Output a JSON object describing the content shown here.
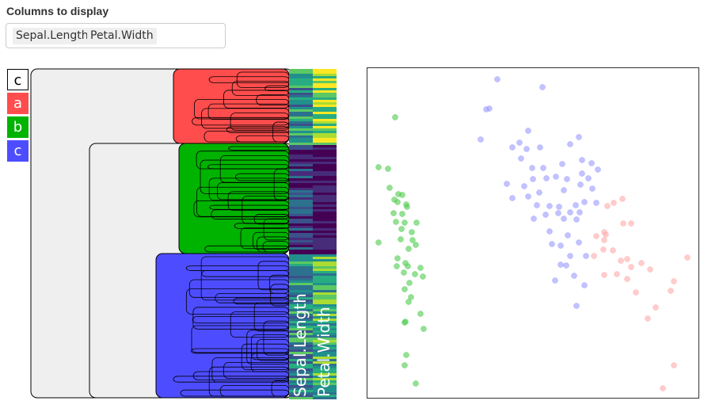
{
  "columns_label": "Columns to display",
  "selected_columns": [
    "Sepal.Length",
    "Petal.Width"
  ],
  "legend": {
    "header": "c",
    "clusters": [
      {
        "label": "a",
        "color": "#ff4d4d"
      },
      {
        "label": "b",
        "color": "#00b300"
      },
      {
        "label": "c",
        "color": "#4d4dff"
      }
    ]
  },
  "heatmap": {
    "column_labels": [
      "Sepal.Length",
      "Petal.Width"
    ],
    "dendrogram_color": "#efefef"
  },
  "chart_data": {
    "type": "scatter",
    "series": [
      {
        "color": "#4dcc4d",
        "points": [
          [
            499,
            148
          ],
          [
            478,
            211
          ],
          [
            490,
            213
          ],
          [
            492,
            237
          ],
          [
            503,
            245
          ],
          [
            498,
            252
          ],
          [
            502,
            255
          ],
          [
            508,
            246
          ],
          [
            513,
            258
          ],
          [
            514,
            261
          ],
          [
            508,
            270
          ],
          [
            497,
            269
          ],
          [
            500,
            280
          ],
          [
            511,
            281
          ],
          [
            526,
            281
          ],
          [
            507,
            289
          ],
          [
            520,
            293
          ],
          [
            478,
            306
          ],
          [
            506,
            302
          ],
          [
            521,
            303
          ],
          [
            516,
            314
          ],
          [
            525,
            309
          ],
          [
            502,
            326
          ],
          [
            512,
            332
          ],
          [
            501,
            336
          ],
          [
            515,
            336
          ],
          [
            531,
            338
          ],
          [
            510,
            344
          ],
          [
            524,
            346
          ],
          [
            534,
            349
          ],
          [
            517,
            357
          ],
          [
            511,
            365
          ],
          [
            519,
            375
          ],
          [
            516,
            381
          ],
          [
            531,
            396
          ],
          [
            512,
            406
          ],
          [
            511,
            407
          ],
          [
            535,
            415
          ],
          [
            513,
            448
          ],
          [
            511,
            461
          ],
          [
            525,
            484
          ]
        ]
      },
      {
        "color": "#9999ff",
        "points": [
          [
            628,
            100
          ],
          [
            685,
            110
          ],
          [
            614,
            138
          ],
          [
            618,
            137
          ],
          [
            667,
            165
          ],
          [
            607,
            176
          ],
          [
            647,
            186
          ],
          [
            656,
            180
          ],
          [
            665,
            188
          ],
          [
            682,
            186
          ],
          [
            731,
            173
          ],
          [
            720,
            182
          ],
          [
            658,
            200
          ],
          [
            672,
            212
          ],
          [
            686,
            212
          ],
          [
            710,
            207
          ],
          [
            735,
            202
          ],
          [
            747,
            206
          ],
          [
            755,
            214
          ],
          [
            673,
            226
          ],
          [
            690,
            225
          ],
          [
            702,
            223
          ],
          [
            716,
            226
          ],
          [
            735,
            219
          ],
          [
            743,
            225
          ],
          [
            640,
            232
          ],
          [
            662,
            235
          ],
          [
            681,
            243
          ],
          [
            712,
            240
          ],
          [
            733,
            233
          ],
          [
            748,
            238
          ],
          [
            647,
            250
          ],
          [
            667,
            248
          ],
          [
            678,
            259
          ],
          [
            694,
            260
          ],
          [
            706,
            261
          ],
          [
            727,
            259
          ],
          [
            738,
            255
          ],
          [
            753,
            256
          ],
          [
            705,
            269
          ],
          [
            720,
            268
          ],
          [
            732,
            268
          ],
          [
            674,
            276
          ],
          [
            689,
            271
          ],
          [
            712,
            276
          ],
          [
            728,
            277
          ],
          [
            694,
            292
          ],
          [
            717,
            297
          ],
          [
            697,
            308
          ],
          [
            708,
            310
          ],
          [
            731,
            306
          ],
          [
            740,
            323
          ],
          [
            720,
            323
          ],
          [
            708,
            334
          ],
          [
            715,
            335
          ],
          [
            701,
            354
          ],
          [
            725,
            348
          ],
          [
            738,
            360
          ],
          [
            728,
            386
          ]
        ]
      },
      {
        "color": "#ffaaaa",
        "points": [
          [
            786,
            251
          ],
          [
            775,
            256
          ],
          [
            767,
            260
          ],
          [
            787,
            282
          ],
          [
            797,
            282
          ],
          [
            763,
            293
          ],
          [
            765,
            296
          ],
          [
            763,
            303
          ],
          [
            753,
            298
          ],
          [
            774,
            316
          ],
          [
            762,
            315
          ],
          [
            750,
            323
          ],
          [
            792,
            327
          ],
          [
            784,
            329
          ],
          [
            797,
            337
          ],
          [
            810,
            332
          ],
          [
            779,
            346
          ],
          [
            763,
            347
          ],
          [
            792,
            352
          ],
          [
            821,
            340
          ],
          [
            868,
            325
          ],
          [
            851,
            355
          ],
          [
            847,
            367
          ],
          [
            803,
            369
          ],
          [
            828,
            388
          ],
          [
            818,
            402
          ],
          [
            851,
            461
          ],
          [
            837,
            490
          ]
        ]
      }
    ],
    "xlabel": "",
    "ylabel": ""
  }
}
